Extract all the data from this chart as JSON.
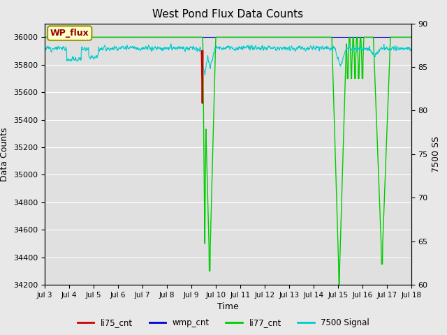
{
  "title": "West Pond Flux Data Counts",
  "ylabel_left": "Data Counts",
  "ylabel_right": "7500 SS",
  "xlabel": "Time",
  "ylim_left": [
    34200,
    36100
  ],
  "ylim_right": [
    60,
    90
  ],
  "yticks_left": [
    34200,
    34400,
    34600,
    34800,
    35000,
    35200,
    35400,
    35600,
    35800,
    36000
  ],
  "yticks_right": [
    60,
    65,
    70,
    75,
    80,
    85,
    90
  ],
  "xtick_days": [
    3,
    4,
    5,
    6,
    7,
    8,
    9,
    10,
    11,
    12,
    13,
    14,
    15,
    16,
    17,
    18
  ],
  "xtick_labels": [
    "Jul 3",
    "Jul 4",
    "Jul 5",
    "Jul 6",
    "Jul 7",
    "Jul 8",
    "Jul 9",
    "Jul 10",
    "Jul 11",
    "Jul 12",
    "Jul 13",
    "Jul 14",
    "Jul 15",
    "Jul 16",
    "Jul 17",
    "Jul 18"
  ],
  "bg_color": "#e8e8e8",
  "plot_bg_color": "#e0e0e0",
  "grid_color": "#ffffff",
  "legend_labels": [
    "li75_cnt",
    "wmp_cnt",
    "li77_cnt",
    "7500 Signal"
  ],
  "legend_colors": [
    "#cc0000",
    "#0000cc",
    "#00cc00",
    "#00cccc"
  ],
  "annotation_box_text": "WP_flux",
  "annotation_box_facecolor": "#ffffcc",
  "annotation_box_edgecolor": "#999900",
  "annotation_box_textcolor": "#990000"
}
